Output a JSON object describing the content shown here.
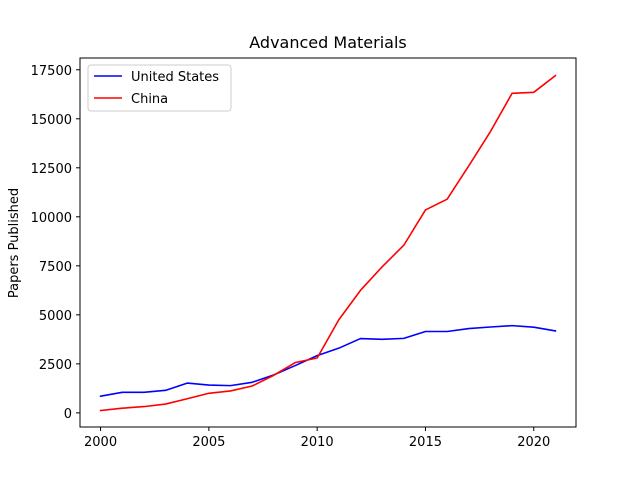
{
  "chart_data": {
    "type": "line",
    "title": "Advanced Materials",
    "xlabel": "",
    "ylabel": "Papers Published",
    "xlim": [
      1999.05,
      2021.95
    ],
    "ylim": [
      -720,
      18100
    ],
    "x_ticks": [
      2000,
      2005,
      2010,
      2015,
      2020
    ],
    "y_ticks": [
      0,
      2500,
      5000,
      7500,
      10000,
      12500,
      15000,
      17500
    ],
    "grid": false,
    "legend_position": "top-left",
    "x": [
      2000,
      2001,
      2002,
      2003,
      2004,
      2005,
      2006,
      2007,
      2008,
      2009,
      2010,
      2011,
      2012,
      2013,
      2014,
      2015,
      2016,
      2017,
      2018,
      2019,
      2020,
      2021
    ],
    "series": [
      {
        "name": "United States",
        "color": "#0000ff",
        "values": [
          850,
          1050,
          1050,
          1150,
          1520,
          1420,
          1390,
          1560,
          1940,
          2420,
          2920,
          3300,
          3790,
          3750,
          3800,
          4150,
          4150,
          4300,
          4380,
          4450,
          4370,
          4180
        ]
      },
      {
        "name": "China",
        "color": "#ff0000",
        "values": [
          120,
          240,
          320,
          450,
          720,
          1000,
          1120,
          1370,
          1920,
          2570,
          2800,
          4750,
          6250,
          7450,
          8550,
          10350,
          10900,
          12600,
          14350,
          16300,
          16350,
          17200
        ]
      }
    ]
  }
}
